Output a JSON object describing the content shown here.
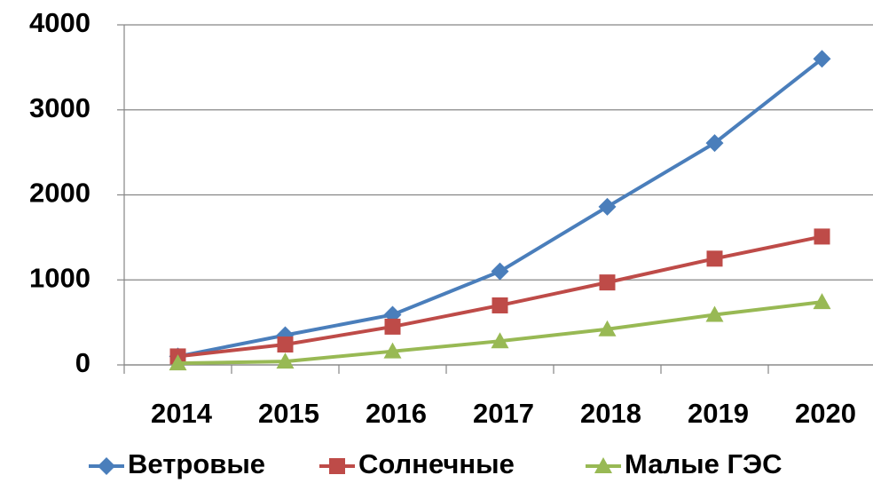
{
  "chart_data": {
    "type": "line",
    "categories": [
      "2014",
      "2015",
      "2016",
      "2017",
      "2018",
      "2019",
      "2020"
    ],
    "series": [
      {
        "name": "Ветровые",
        "color": "#4a7ebb",
        "marker": "diamond",
        "values": [
          100,
          350,
          590,
          1100,
          1860,
          2610,
          3600
        ]
      },
      {
        "name": "Солнечные",
        "color": "#be4b48",
        "marker": "square",
        "values": [
          100,
          240,
          450,
          700,
          970,
          1250,
          1510
        ]
      },
      {
        "name": "Малые ГЭС",
        "color": "#98b954",
        "marker": "triangle",
        "values": [
          20,
          40,
          160,
          280,
          420,
          590,
          740
        ]
      }
    ],
    "ylim": [
      0,
      4000
    ],
    "yticks": [
      0,
      1000,
      2000,
      3000,
      4000
    ],
    "grid": true,
    "legend": "bottom"
  }
}
